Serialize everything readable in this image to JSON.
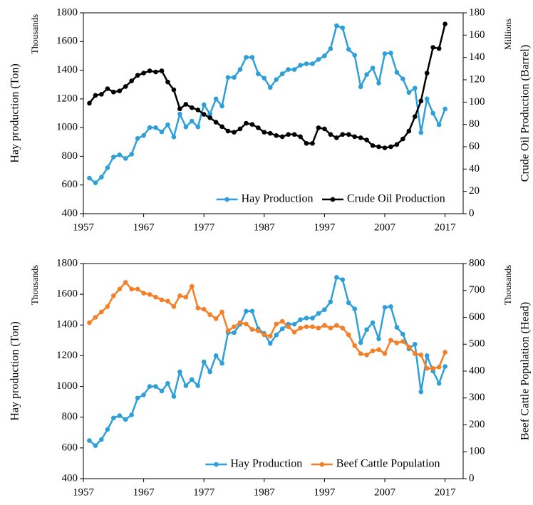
{
  "chart_data": [
    {
      "type": "line",
      "x": [
        1958,
        1959,
        1960,
        1961,
        1962,
        1963,
        1964,
        1965,
        1966,
        1967,
        1968,
        1969,
        1970,
        1971,
        1972,
        1973,
        1974,
        1975,
        1976,
        1977,
        1978,
        1979,
        1980,
        1981,
        1982,
        1983,
        1984,
        1985,
        1986,
        1987,
        1988,
        1989,
        1990,
        1991,
        1992,
        1993,
        1994,
        1995,
        1996,
        1997,
        1998,
        1999,
        2000,
        2001,
        2002,
        2003,
        2004,
        2005,
        2006,
        2007,
        2008,
        2009,
        2010,
        2011,
        2012,
        2013,
        2014,
        2015,
        2016,
        2017
      ],
      "xlim": [
        1957,
        2020
      ],
      "xticks": [
        1957,
        1967,
        1977,
        1987,
        1997,
        2007,
        2017
      ],
      "ylim": [
        400,
        1800
      ],
      "yticks": [
        400,
        600,
        800,
        1000,
        1200,
        1400,
        1600,
        1800
      ],
      "y2lim": [
        0,
        180
      ],
      "y2ticks": [
        0,
        20,
        40,
        60,
        80,
        100,
        120,
        140,
        160,
        180
      ],
      "ylabel": "Hay production (Ton)",
      "y_unit": "Thousands",
      "y2label": "Crude Oil Production (Barrel)",
      "y2_unit": "Millions",
      "legend": "lower right",
      "series": [
        {
          "name": "Hay Production",
          "color": "#2e9fd8",
          "axis": "y",
          "values": [
            648,
            615,
            655,
            720,
            795,
            810,
            785,
            815,
            925,
            945,
            1000,
            1000,
            970,
            1020,
            935,
            1095,
            1005,
            1045,
            1005,
            1160,
            1095,
            1200,
            1150,
            1350,
            1350,
            1405,
            1490,
            1490,
            1375,
            1345,
            1280,
            1335,
            1375,
            1405,
            1405,
            1435,
            1445,
            1445,
            1475,
            1500,
            1550,
            1710,
            1695,
            1545,
            1505,
            1285,
            1370,
            1415,
            1310,
            1515,
            1520,
            1385,
            1340,
            1245,
            1275,
            965,
            1200,
            1100,
            1020,
            1130
          ]
        },
        {
          "name": "Crude Oil Production",
          "color": "#000000",
          "axis": "y2",
          "values": [
            99,
            106,
            107,
            112,
            109,
            110,
            114,
            119,
            124,
            126,
            128,
            127,
            128,
            118,
            111,
            94,
            98,
            95,
            93,
            89,
            86,
            82,
            78,
            74,
            73,
            76,
            81,
            80,
            77,
            73,
            72,
            70,
            69,
            71,
            71,
            69,
            63,
            63,
            77,
            76,
            71,
            68,
            71,
            71,
            69,
            68,
            66,
            61,
            60,
            59,
            60,
            62,
            67,
            74,
            87,
            101,
            126,
            149,
            148,
            170
          ]
        }
      ]
    },
    {
      "type": "line",
      "x": [
        1958,
        1959,
        1960,
        1961,
        1962,
        1963,
        1964,
        1965,
        1966,
        1967,
        1968,
        1969,
        1970,
        1971,
        1972,
        1973,
        1974,
        1975,
        1976,
        1977,
        1978,
        1979,
        1980,
        1981,
        1982,
        1983,
        1984,
        1985,
        1986,
        1987,
        1988,
        1989,
        1990,
        1991,
        1992,
        1993,
        1994,
        1995,
        1996,
        1997,
        1998,
        1999,
        2000,
        2001,
        2002,
        2003,
        2004,
        2005,
        2006,
        2007,
        2008,
        2009,
        2010,
        2011,
        2012,
        2013,
        2014,
        2015,
        2016,
        2017
      ],
      "xlim": [
        1957,
        2020
      ],
      "xticks": [
        1957,
        1967,
        1977,
        1987,
        1997,
        2007,
        2017
      ],
      "ylim": [
        400,
        1800
      ],
      "yticks": [
        400,
        600,
        800,
        1000,
        1200,
        1400,
        1600,
        1800
      ],
      "y2lim": [
        0,
        800
      ],
      "y2ticks": [
        0,
        100,
        200,
        300,
        400,
        500,
        600,
        700,
        800
      ],
      "ylabel": "Hay production (Ton)",
      "y_unit": "Thousands",
      "y2label": "Beef Cattle Population (Head)",
      "y2_unit": "Thousands",
      "legend": "lower right",
      "series": [
        {
          "name": "Hay Production",
          "color": "#2e9fd8",
          "axis": "y",
          "values": [
            648,
            615,
            655,
            720,
            795,
            810,
            785,
            815,
            925,
            945,
            1000,
            1000,
            970,
            1020,
            935,
            1095,
            1005,
            1045,
            1005,
            1160,
            1095,
            1200,
            1150,
            1350,
            1350,
            1405,
            1490,
            1490,
            1375,
            1345,
            1280,
            1335,
            1375,
            1405,
            1405,
            1435,
            1445,
            1445,
            1475,
            1500,
            1550,
            1710,
            1695,
            1545,
            1505,
            1285,
            1370,
            1415,
            1310,
            1515,
            1520,
            1385,
            1340,
            1245,
            1275,
            965,
            1200,
            1100,
            1020,
            1130
          ]
        },
        {
          "name": "Beef Cattle Population",
          "color": "#f57f27",
          "axis": "y2",
          "values": [
            580,
            600,
            620,
            640,
            680,
            705,
            730,
            705,
            705,
            690,
            685,
            675,
            665,
            660,
            640,
            680,
            675,
            715,
            635,
            630,
            610,
            595,
            620,
            550,
            565,
            580,
            575,
            555,
            550,
            535,
            530,
            575,
            585,
            565,
            545,
            560,
            565,
            565,
            560,
            570,
            560,
            570,
            560,
            535,
            495,
            465,
            460,
            475,
            480,
            465,
            515,
            505,
            510,
            490,
            465,
            460,
            410,
            410,
            415,
            470
          ]
        }
      ]
    }
  ]
}
